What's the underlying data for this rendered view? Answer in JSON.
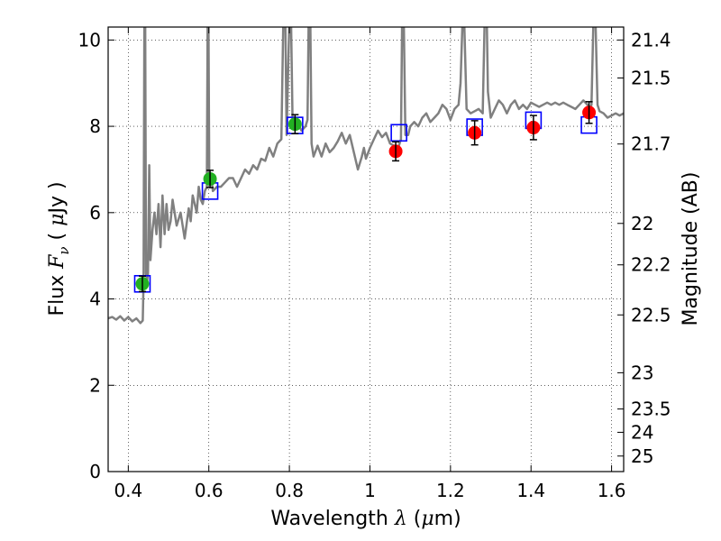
{
  "chart_data": {
    "type": "scatter",
    "xlabel_parts": [
      "Wavelength  ",
      "λ",
      " (",
      "μ",
      "m)"
    ],
    "ylabel_parts": [
      "Flux  ",
      "F",
      "ν",
      "  ( ",
      "μ",
      "Jy )"
    ],
    "y2label": "Magnitude (AB)",
    "xlim": [
      0.35,
      1.63
    ],
    "ylim": [
      0,
      10.3
    ],
    "xticks": [
      0.4,
      0.6,
      0.8,
      1.0,
      1.2,
      1.4,
      1.6
    ],
    "xtick_labels": [
      "0.4",
      "0.6",
      "0.8",
      "1",
      "1.2",
      "1.4",
      "1.6"
    ],
    "yticks": [
      0,
      2,
      4,
      6,
      8,
      10
    ],
    "ytick_labels": [
      "0",
      "2",
      "4",
      "6",
      "8",
      "10"
    ],
    "y2ticks": [
      {
        "label": "21.4",
        "flux": 10.0
      },
      {
        "label": "21.5",
        "flux": 9.12
      },
      {
        "label": "21.7",
        "flux": 7.59
      },
      {
        "label": "22",
        "flux": 5.75
      },
      {
        "label": "22.2",
        "flux": 4.79
      },
      {
        "label": "22.5",
        "flux": 3.63
      },
      {
        "label": "23",
        "flux": 2.29
      },
      {
        "label": "23.5",
        "flux": 1.45
      },
      {
        "label": "24",
        "flux": 0.91
      },
      {
        "label": "25",
        "flux": 0.36
      }
    ],
    "grid": true,
    "colors": {
      "spectrum": "#808080",
      "green_points": "#22b022",
      "red_points": "#ff0000",
      "model_boxes": "#0000ff",
      "error_bars": "#000000"
    },
    "series": [
      {
        "marker": "circle",
        "color": "green",
        "x": [
          0.435,
          0.603,
          0.814
        ],
        "y": [
          4.35,
          6.78,
          8.05
        ],
        "yerr": [
          0.18,
          0.2,
          0.22
        ]
      },
      {
        "marker": "circle",
        "color": "red",
        "x": [
          1.064,
          1.26,
          1.406,
          1.544
        ],
        "y": [
          7.42,
          7.85,
          7.97,
          8.32
        ],
        "yerr": [
          0.22,
          0.28,
          0.28,
          0.25
        ]
      },
      {
        "marker": "open-square",
        "color": "blue",
        "x": [
          0.435,
          0.603,
          0.814,
          1.072,
          1.26,
          1.406,
          1.544
        ],
        "y": [
          4.35,
          6.5,
          8.02,
          7.85,
          7.98,
          8.14,
          8.03
        ]
      }
    ],
    "spectrum": [
      [
        0.35,
        3.55
      ],
      [
        0.36,
        3.58
      ],
      [
        0.37,
        3.52
      ],
      [
        0.38,
        3.6
      ],
      [
        0.39,
        3.5
      ],
      [
        0.4,
        3.58
      ],
      [
        0.41,
        3.48
      ],
      [
        0.42,
        3.55
      ],
      [
        0.43,
        3.44
      ],
      [
        0.436,
        3.5
      ],
      [
        0.438,
        4.4
      ],
      [
        0.44,
        10.5
      ],
      [
        0.442,
        10.5
      ],
      [
        0.444,
        4.6
      ],
      [
        0.447,
        4.4
      ],
      [
        0.449,
        4.6
      ],
      [
        0.452,
        7.1
      ],
      [
        0.455,
        4.9
      ],
      [
        0.46,
        5.6
      ],
      [
        0.465,
        6.0
      ],
      [
        0.47,
        5.5
      ],
      [
        0.475,
        6.2
      ],
      [
        0.48,
        5.2
      ],
      [
        0.485,
        6.4
      ],
      [
        0.49,
        5.5
      ],
      [
        0.495,
        6.2
      ],
      [
        0.5,
        5.6
      ],
      [
        0.505,
        5.8
      ],
      [
        0.51,
        6.3
      ],
      [
        0.52,
        5.7
      ],
      [
        0.53,
        6.0
      ],
      [
        0.54,
        5.4
      ],
      [
        0.55,
        6.1
      ],
      [
        0.555,
        5.8
      ],
      [
        0.56,
        6.4
      ],
      [
        0.57,
        6.0
      ],
      [
        0.575,
        6.6
      ],
      [
        0.58,
        6.3
      ],
      [
        0.585,
        6.2
      ],
      [
        0.59,
        6.5
      ],
      [
        0.595,
        6.6
      ],
      [
        0.597,
        10.5
      ],
      [
        0.599,
        10.5
      ],
      [
        0.601,
        6.8
      ],
      [
        0.605,
        6.9
      ],
      [
        0.61,
        6.5
      ],
      [
        0.62,
        6.6
      ],
      [
        0.63,
        6.6
      ],
      [
        0.64,
        6.7
      ],
      [
        0.65,
        6.8
      ],
      [
        0.66,
        6.8
      ],
      [
        0.67,
        6.6
      ],
      [
        0.68,
        6.8
      ],
      [
        0.69,
        7.0
      ],
      [
        0.7,
        6.9
      ],
      [
        0.71,
        7.1
      ],
      [
        0.72,
        7.0
      ],
      [
        0.73,
        7.25
      ],
      [
        0.74,
        7.2
      ],
      [
        0.75,
        7.5
      ],
      [
        0.76,
        7.3
      ],
      [
        0.77,
        7.6
      ],
      [
        0.78,
        7.7
      ],
      [
        0.785,
        10.5
      ],
      [
        0.79,
        10.5
      ],
      [
        0.793,
        7.8
      ],
      [
        0.8,
        10.5
      ],
      [
        0.804,
        10.5
      ],
      [
        0.808,
        8.0
      ],
      [
        0.82,
        8.1
      ],
      [
        0.83,
        7.9
      ],
      [
        0.84,
        8.0
      ],
      [
        0.845,
        8.15
      ],
      [
        0.848,
        10.5
      ],
      [
        0.852,
        10.5
      ],
      [
        0.855,
        7.6
      ],
      [
        0.86,
        7.3
      ],
      [
        0.87,
        7.55
      ],
      [
        0.88,
        7.3
      ],
      [
        0.89,
        7.6
      ],
      [
        0.9,
        7.4
      ],
      [
        0.91,
        7.5
      ],
      [
        0.92,
        7.65
      ],
      [
        0.93,
        7.85
      ],
      [
        0.94,
        7.6
      ],
      [
        0.95,
        7.8
      ],
      [
        0.96,
        7.4
      ],
      [
        0.97,
        7.0
      ],
      [
        0.98,
        7.3
      ],
      [
        0.985,
        7.5
      ],
      [
        0.99,
        7.25
      ],
      [
        1.0,
        7.5
      ],
      [
        1.01,
        7.7
      ],
      [
        1.02,
        7.9
      ],
      [
        1.03,
        7.75
      ],
      [
        1.04,
        7.85
      ],
      [
        1.05,
        7.6
      ],
      [
        1.06,
        7.55
      ],
      [
        1.07,
        7.5
      ],
      [
        1.077,
        7.7
      ],
      [
        1.08,
        10.5
      ],
      [
        1.084,
        10.5
      ],
      [
        1.088,
        7.8
      ],
      [
        1.095,
        7.8
      ],
      [
        1.1,
        8.0
      ],
      [
        1.11,
        8.1
      ],
      [
        1.12,
        8.0
      ],
      [
        1.13,
        8.2
      ],
      [
        1.14,
        8.3
      ],
      [
        1.15,
        8.1
      ],
      [
        1.16,
        8.2
      ],
      [
        1.17,
        8.3
      ],
      [
        1.18,
        8.5
      ],
      [
        1.19,
        8.4
      ],
      [
        1.2,
        8.15
      ],
      [
        1.21,
        8.4
      ],
      [
        1.22,
        8.5
      ],
      [
        1.225,
        9.0
      ],
      [
        1.23,
        10.5
      ],
      [
        1.234,
        10.5
      ],
      [
        1.24,
        8.4
      ],
      [
        1.25,
        8.3
      ],
      [
        1.26,
        8.35
      ],
      [
        1.27,
        8.4
      ],
      [
        1.28,
        8.3
      ],
      [
        1.285,
        10.5
      ],
      [
        1.29,
        10.5
      ],
      [
        1.293,
        8.8
      ],
      [
        1.3,
        8.2
      ],
      [
        1.31,
        8.4
      ],
      [
        1.32,
        8.6
      ],
      [
        1.33,
        8.5
      ],
      [
        1.34,
        8.3
      ],
      [
        1.35,
        8.5
      ],
      [
        1.36,
        8.6
      ],
      [
        1.37,
        8.4
      ],
      [
        1.38,
        8.5
      ],
      [
        1.39,
        8.4
      ],
      [
        1.4,
        8.55
      ],
      [
        1.41,
        8.5
      ],
      [
        1.42,
        8.45
      ],
      [
        1.43,
        8.5
      ],
      [
        1.44,
        8.55
      ],
      [
        1.45,
        8.5
      ],
      [
        1.46,
        8.55
      ],
      [
        1.47,
        8.5
      ],
      [
        1.48,
        8.55
      ],
      [
        1.49,
        8.5
      ],
      [
        1.5,
        8.45
      ],
      [
        1.51,
        8.4
      ],
      [
        1.52,
        8.5
      ],
      [
        1.53,
        8.6
      ],
      [
        1.54,
        8.5
      ],
      [
        1.545,
        8.4
      ],
      [
        1.55,
        8.5
      ],
      [
        1.555,
        10.5
      ],
      [
        1.56,
        10.5
      ],
      [
        1.565,
        8.5
      ],
      [
        1.57,
        8.35
      ],
      [
        1.58,
        8.3
      ],
      [
        1.59,
        8.2
      ],
      [
        1.6,
        8.25
      ],
      [
        1.61,
        8.3
      ],
      [
        1.62,
        8.25
      ],
      [
        1.63,
        8.3
      ]
    ]
  }
}
